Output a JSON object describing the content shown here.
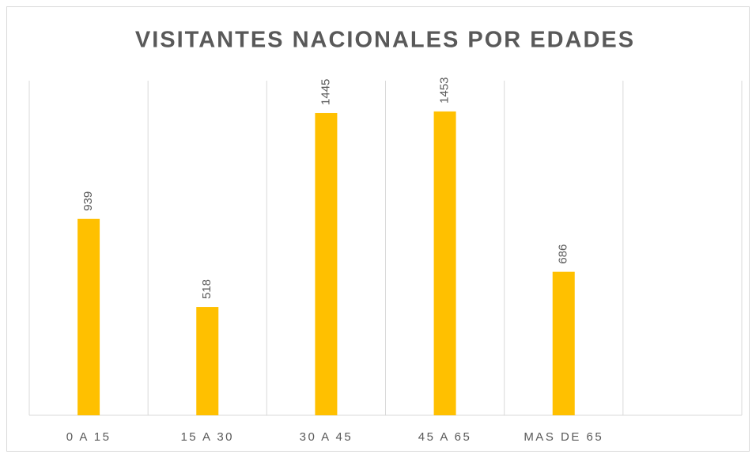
{
  "chart_data": {
    "type": "bar",
    "title": "VISITANTES NACIONALES POR EDADES",
    "categories": [
      "0 A 15",
      "15 A 30",
      "30 A 45",
      "45 A 65",
      "MAS DE 65",
      null
    ],
    "values": [
      939,
      518,
      1445,
      1453,
      686,
      null
    ],
    "color": "#ffc000",
    "ylim": [
      0,
      1600
    ]
  }
}
